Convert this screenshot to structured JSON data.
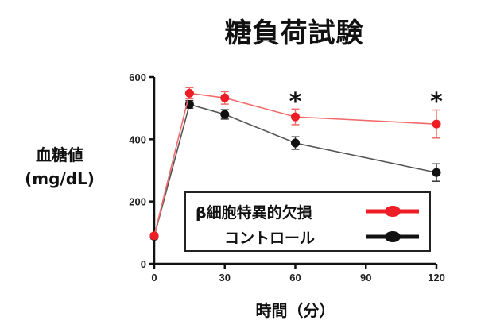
{
  "chart_data": {
    "type": "line",
    "title": "糖負荷試験",
    "xlabel": "時間（分）",
    "ylabel": "血糖値\n(mg/dL)",
    "ylabel_lines": [
      "血糖値",
      "(mg/dL)"
    ],
    "x": [
      0,
      15,
      30,
      60,
      120
    ],
    "xticks": [
      0,
      30,
      60,
      90,
      120
    ],
    "yticks": [
      0,
      200,
      400,
      600
    ],
    "xlim": [
      0,
      120
    ],
    "ylim": [
      0,
      600
    ],
    "grid": false,
    "legend_position": "lower right (inside)",
    "series": [
      {
        "name": "β細胞特異的欠損",
        "color": "#ee1c24",
        "values": [
          90,
          548,
          533,
          472,
          449
        ],
        "errors": [
          8,
          18,
          20,
          25,
          45
        ]
      },
      {
        "name": "コントロール",
        "color": "#111111",
        "values": [
          88,
          512,
          480,
          388,
          293
        ],
        "errors": [
          8,
          12,
          15,
          20,
          28
        ]
      }
    ],
    "annotations": [
      {
        "x": 60,
        "text": "*"
      },
      {
        "x": 120,
        "text": "*"
      }
    ]
  }
}
